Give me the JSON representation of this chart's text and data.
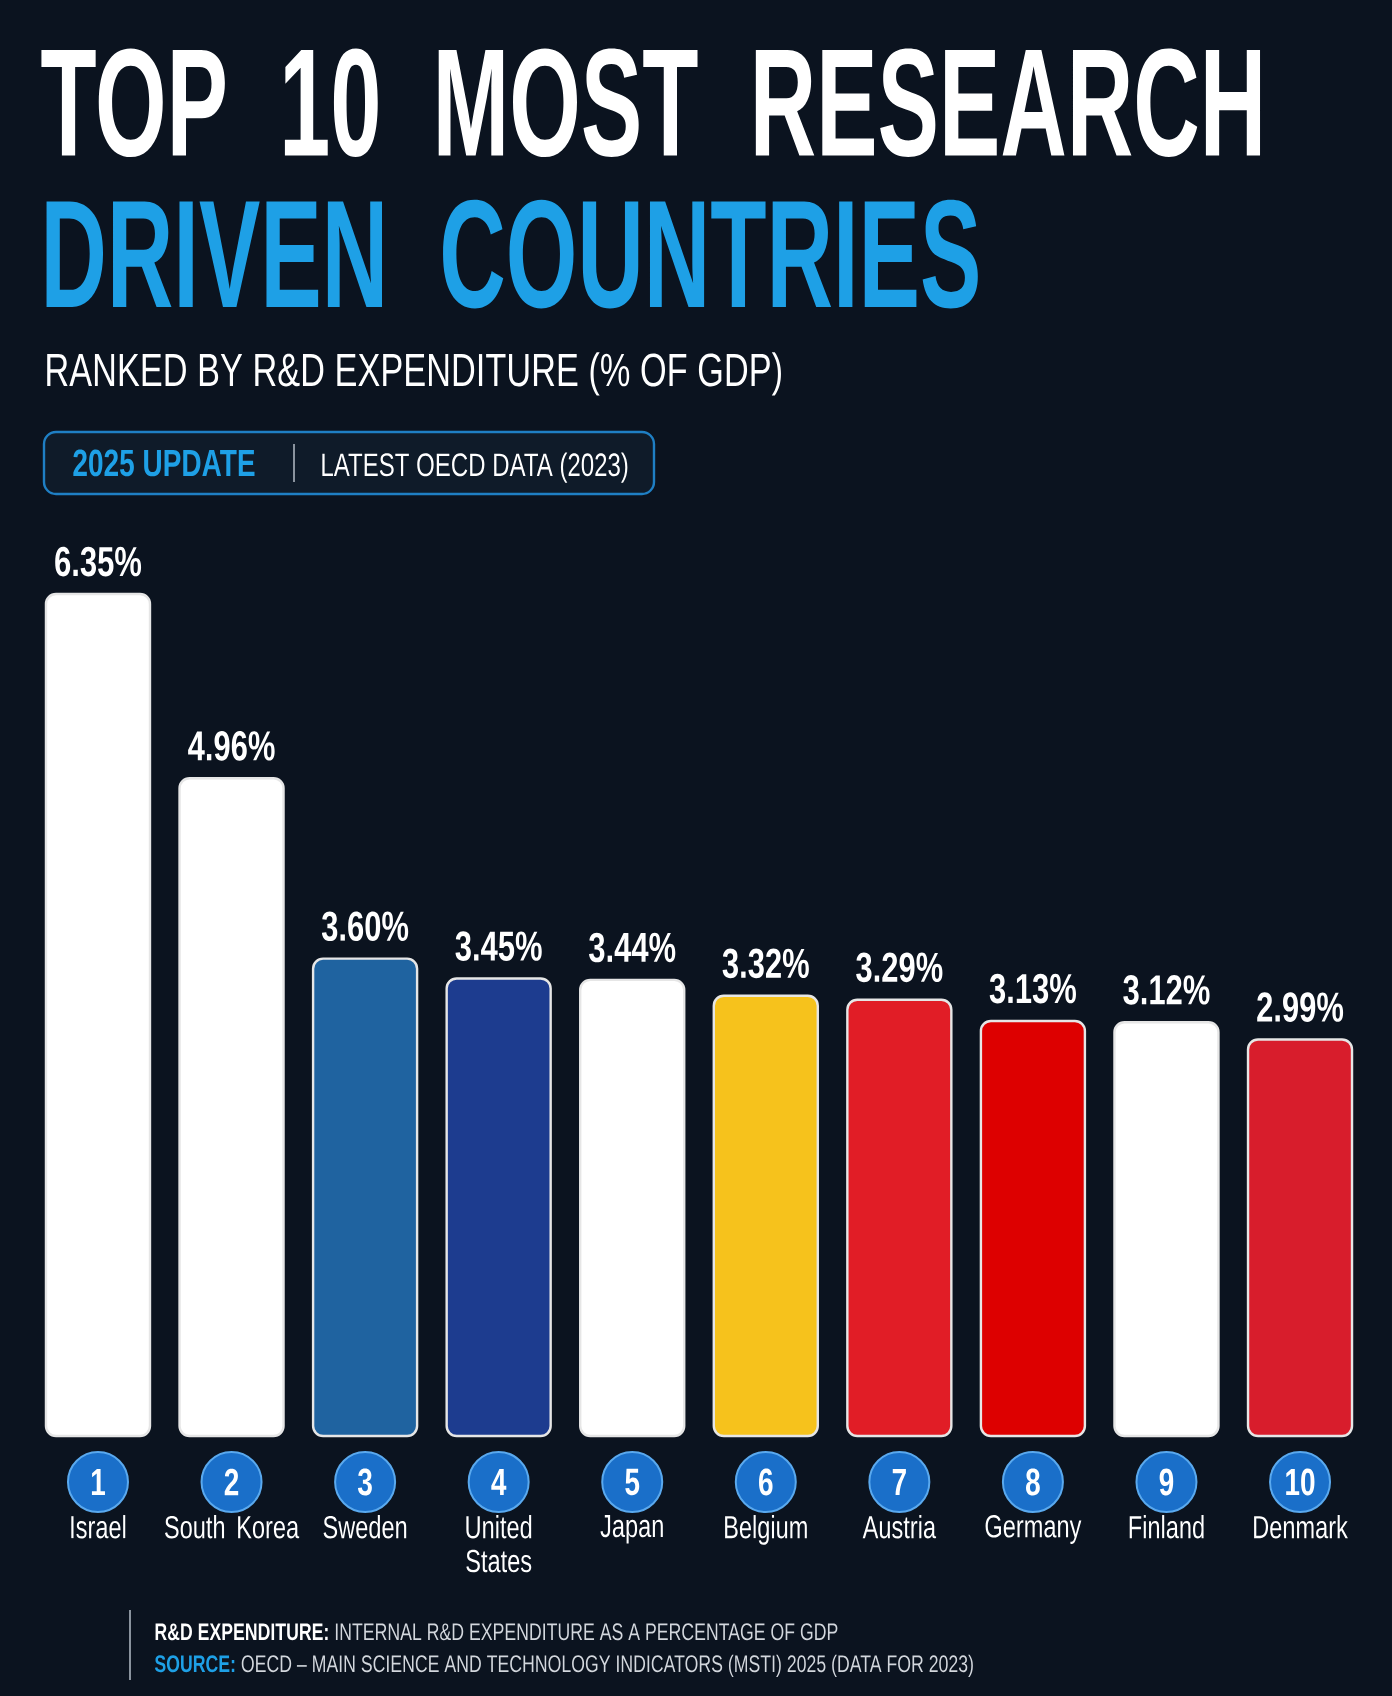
{
  "chart_data": {
    "type": "bar",
    "title": "TOP 10 MOST RESEARCH DRIVEN COUNTRIES",
    "subtitle": "RANKED BY R&D EXPENDITURE (% OF GDP)",
    "categories": [
      "Israel",
      "South Korea",
      "Sweden",
      "United States",
      "Japan",
      "Belgium",
      "Austria",
      "Germany",
      "Finland",
      "Denmark"
    ],
    "values": [
      6.35,
      4.96,
      3.6,
      3.45,
      3.44,
      3.32,
      3.29,
      3.13,
      3.12,
      2.99
    ],
    "colors": [
      "#ffffff",
      "#ffffff",
      "#1f63a0",
      "#1d3c8f",
      "#ffffff",
      "#f6c21c",
      "#e11d26",
      "#dd0000",
      "#ffffff",
      "#d81d2c"
    ],
    "value_labels": [
      "6.35%",
      "4.96%",
      "3.60%",
      "3.45%",
      "3.44%",
      "3.32%",
      "3.29%",
      "3.13%",
      "3.12%",
      "2.99%"
    ],
    "tick_labels": "x",
    "annotations": [
      "2025 UPDATE",
      "LATEST OECD DATA (2023)",
      "1",
      "2",
      "3",
      "4",
      "5",
      "6",
      "7",
      "8",
      "9",
      "10",
      "**R&D EXPENDITURE:** INTERNAL R&D EXPENDITURE AS A PERCENTAGE OF GDP",
      "**SOURCE:** OECD – MAIN SCIENCE AND TECHNOLOGY INDICATORS (MSTI) 2025 (DATA FOR 2023)"
    ]
  }
}
